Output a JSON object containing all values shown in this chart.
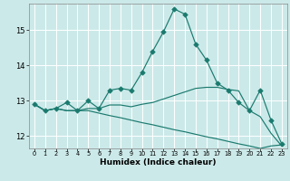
{
  "xlabel": "Humidex (Indice chaleur)",
  "background_color": "#cce9e9",
  "grid_color": "#ffffff",
  "line_color": "#1a7a6e",
  "xlim": [
    -0.5,
    23.5
  ],
  "ylim": [
    11.65,
    15.75
  ],
  "yticks": [
    12,
    13,
    14,
    15
  ],
  "xticks": [
    0,
    1,
    2,
    3,
    4,
    5,
    6,
    7,
    8,
    9,
    10,
    11,
    12,
    13,
    14,
    15,
    16,
    17,
    18,
    19,
    20,
    21,
    22,
    23
  ],
  "series": [
    {
      "x": [
        0,
        1,
        2,
        3,
        4,
        5,
        6,
        7,
        8,
        9,
        10,
        11,
        12,
        13,
        14,
        15,
        16,
        17,
        18,
        19,
        20,
        21,
        22,
        23
      ],
      "y": [
        12.9,
        12.72,
        12.78,
        12.95,
        12.72,
        13.0,
        12.78,
        13.3,
        13.35,
        13.3,
        13.8,
        14.4,
        14.95,
        15.6,
        15.45,
        14.6,
        14.15,
        13.5,
        13.3,
        12.95,
        12.72,
        13.3,
        12.45,
        11.78
      ],
      "marker": "D"
    },
    {
      "x": [
        0,
        1,
        2,
        3,
        4,
        5,
        6,
        7,
        8,
        9,
        10,
        11,
        12,
        13,
        14,
        15,
        16,
        17,
        18,
        19,
        20,
        21,
        22,
        23
      ],
      "y": [
        12.9,
        12.72,
        12.78,
        12.72,
        12.72,
        12.78,
        12.78,
        12.88,
        12.88,
        12.83,
        12.9,
        12.95,
        13.05,
        13.15,
        13.25,
        13.35,
        13.38,
        13.38,
        13.32,
        13.28,
        12.72,
        12.55,
        12.08,
        11.72
      ],
      "marker": null
    },
    {
      "x": [
        0,
        1,
        2,
        3,
        4,
        5,
        6,
        7,
        8,
        9,
        10,
        11,
        12,
        13,
        14,
        15,
        16,
        17,
        18,
        19,
        20,
        21,
        22,
        23
      ],
      "y": [
        12.9,
        12.72,
        12.78,
        12.72,
        12.72,
        12.72,
        12.65,
        12.58,
        12.52,
        12.45,
        12.38,
        12.32,
        12.25,
        12.18,
        12.12,
        12.05,
        11.98,
        11.92,
        11.85,
        11.78,
        11.72,
        11.65,
        11.72,
        11.75
      ],
      "marker": null
    }
  ]
}
